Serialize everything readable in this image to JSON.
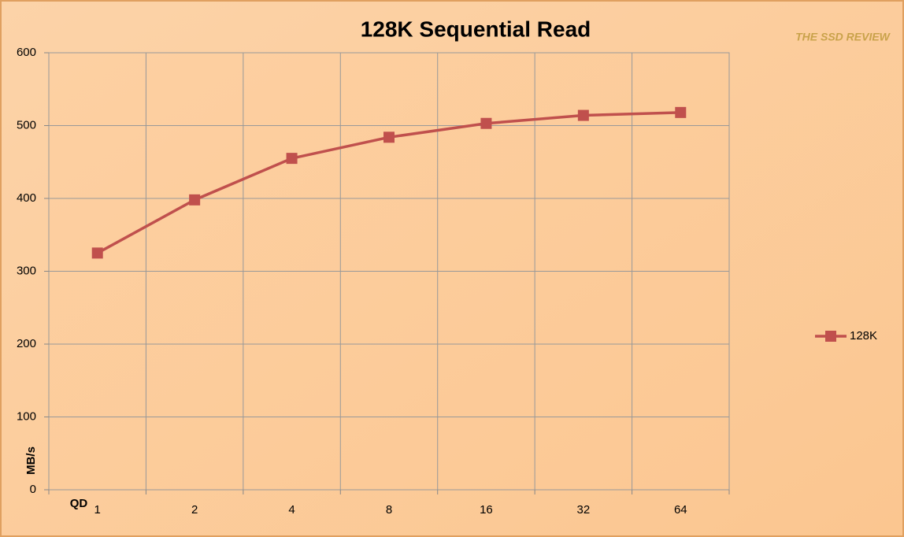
{
  "chart_data": {
    "type": "line",
    "title": "128K Sequential Read",
    "watermark": "THE SSD REVIEW",
    "x_label": "QD",
    "y_label": "MB/s",
    "categories": [
      "1",
      "2",
      "4",
      "8",
      "16",
      "32",
      "64"
    ],
    "series": [
      {
        "name": "128K",
        "color": "#c0504d",
        "values": [
          325,
          398,
          455,
          484,
          503,
          514,
          518
        ]
      }
    ],
    "ylim": [
      0,
      600
    ],
    "yticks": [
      0,
      100,
      200,
      300,
      400,
      500,
      600
    ],
    "grid": true,
    "legend": "right"
  }
}
